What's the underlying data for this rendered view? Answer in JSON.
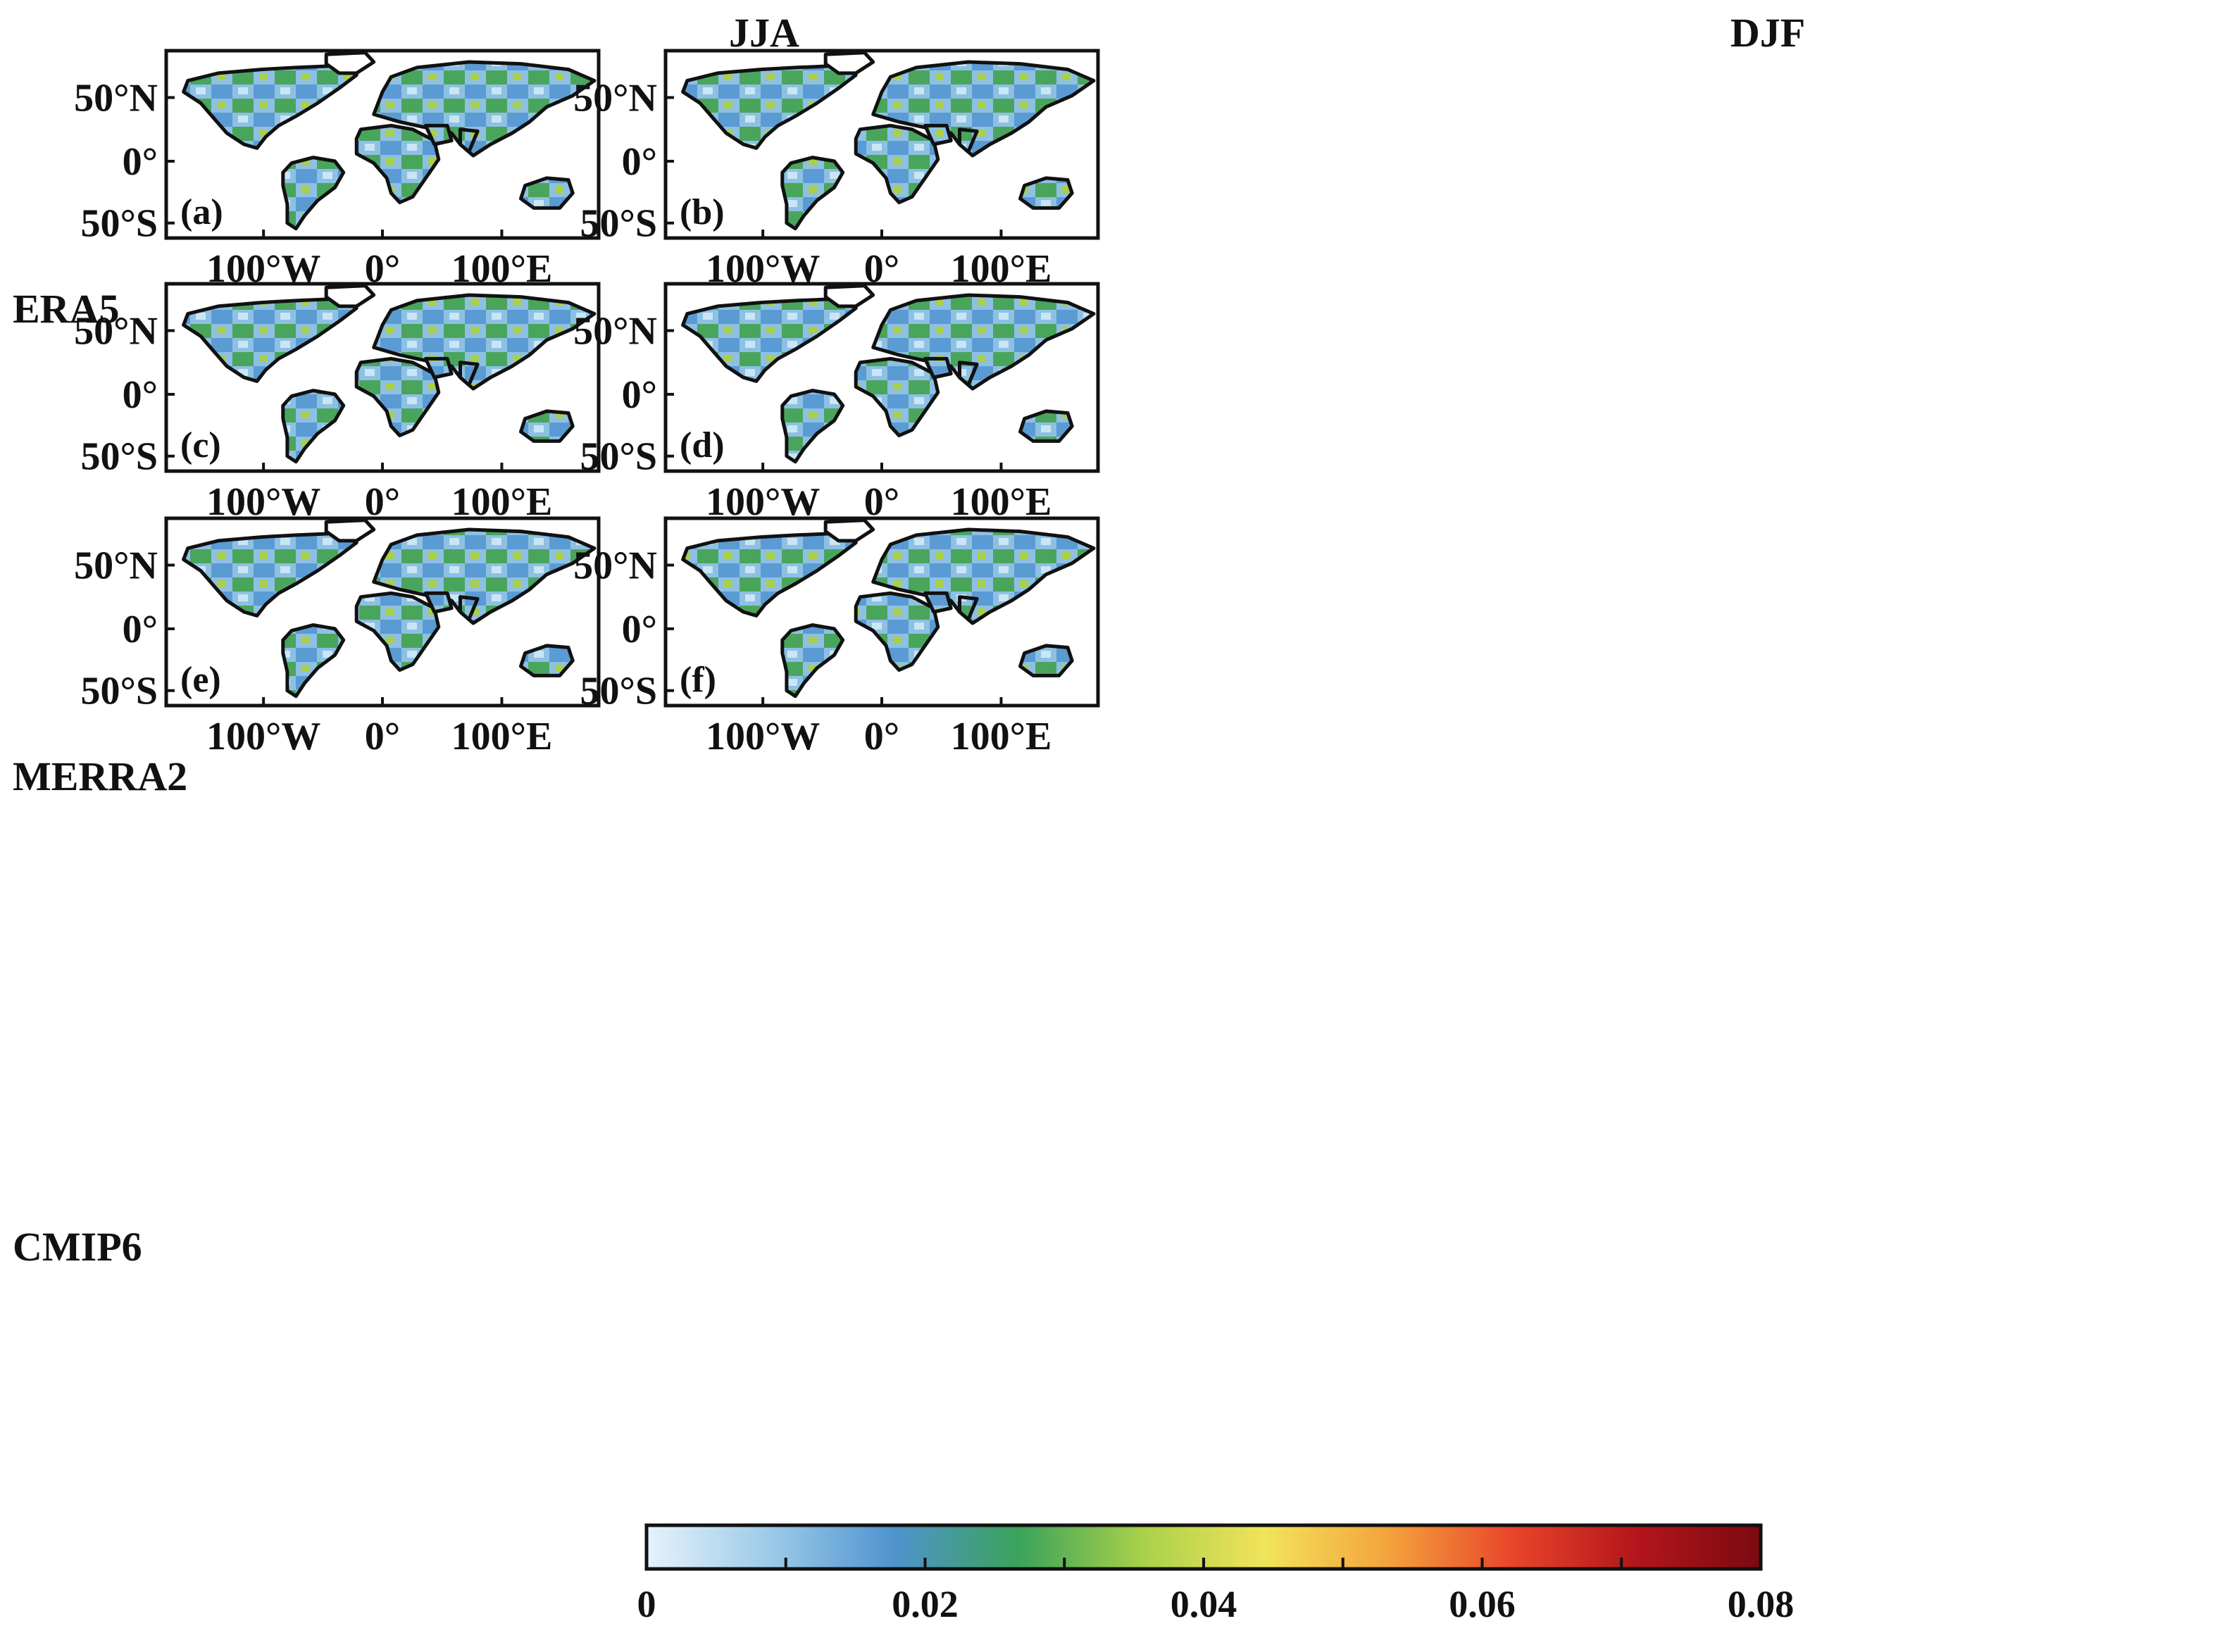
{
  "column_titles": [
    "JJA",
    "DJF"
  ],
  "row_titles": [
    "ERA5",
    "MERRA2",
    "CMIP6"
  ],
  "panels": [
    {
      "label": "(a)",
      "dataset": "ERA5",
      "season": "JJA"
    },
    {
      "label": "(b)",
      "dataset": "ERA5",
      "season": "DJF"
    },
    {
      "label": "(c)",
      "dataset": "MERRA2",
      "season": "JJA"
    },
    {
      "label": "(d)",
      "dataset": "MERRA2",
      "season": "DJF"
    },
    {
      "label": "(e)",
      "dataset": "CMIP6",
      "season": "JJA"
    },
    {
      "label": "(f)",
      "dataset": "CMIP6",
      "season": "DJF"
    }
  ],
  "lat_ticks": [
    "50°N",
    "0°",
    "50°S"
  ],
  "lon_ticks": [
    "100°W",
    "0°",
    "100°E"
  ],
  "colorbar": {
    "ticks": [
      "0",
      "0.02",
      "0.04",
      "0.06",
      "0.08"
    ],
    "range": [
      0,
      0.08
    ],
    "colors": [
      "#e6f3fb",
      "#9ccae8",
      "#4f93cf",
      "#3aa35a",
      "#a8d04a",
      "#f2e45a",
      "#f4a23c",
      "#e8452a",
      "#b3151b",
      "#7a0a10"
    ]
  }
}
